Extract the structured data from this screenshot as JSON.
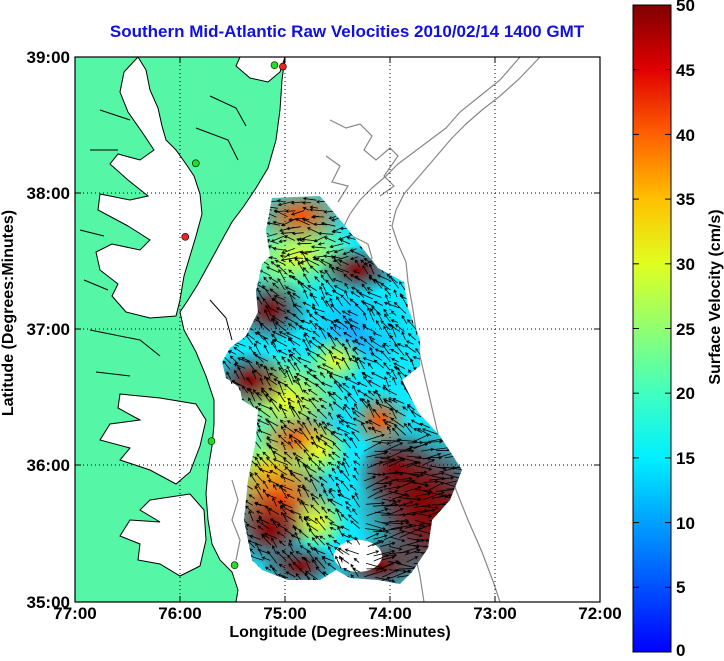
{
  "title": "Southern Mid-Atlantic Raw Velocities 2010/02/14 1400 GMT",
  "axes": {
    "xlabel": "Longitude (Degrees:Minutes)",
    "ylabel": "Latitude (Degrees:Minutes)",
    "x_ticks": [
      "77:00",
      "76:00",
      "75:00",
      "74:00",
      "73:00",
      "72:00"
    ],
    "y_ticks": [
      "39:00",
      "38:00",
      "37:00",
      "36:00",
      "35:00"
    ],
    "lon_range": [
      -77,
      -72
    ],
    "lat_range": [
      35,
      39
    ],
    "grid": "dotted"
  },
  "colorbar": {
    "label": "Surface Velocity (cm/s)",
    "ticks": [
      "50",
      "45",
      "40",
      "35",
      "30",
      "25",
      "20",
      "15",
      "10",
      "5",
      "0"
    ],
    "range": [
      0,
      50
    ],
    "colormap": "jet"
  },
  "colors": {
    "land": "#55f7a6",
    "water": "#ffffff",
    "title": "#1010e0",
    "bathymetry": "#888888",
    "station_active": "#22dd22",
    "station_inactive": "#ee2222"
  },
  "stations": [
    {
      "lon": -75.02,
      "lat": 38.93,
      "status": "inactive"
    },
    {
      "lon": -75.1,
      "lat": 38.94,
      "status": "active"
    },
    {
      "lon": -75.85,
      "lat": 38.22,
      "status": "active"
    },
    {
      "lon": -75.95,
      "lat": 37.68,
      "status": "inactive"
    },
    {
      "lon": -75.7,
      "lat": 36.18,
      "status": "active"
    },
    {
      "lon": -75.48,
      "lat": 35.27,
      "status": "active"
    }
  ]
}
